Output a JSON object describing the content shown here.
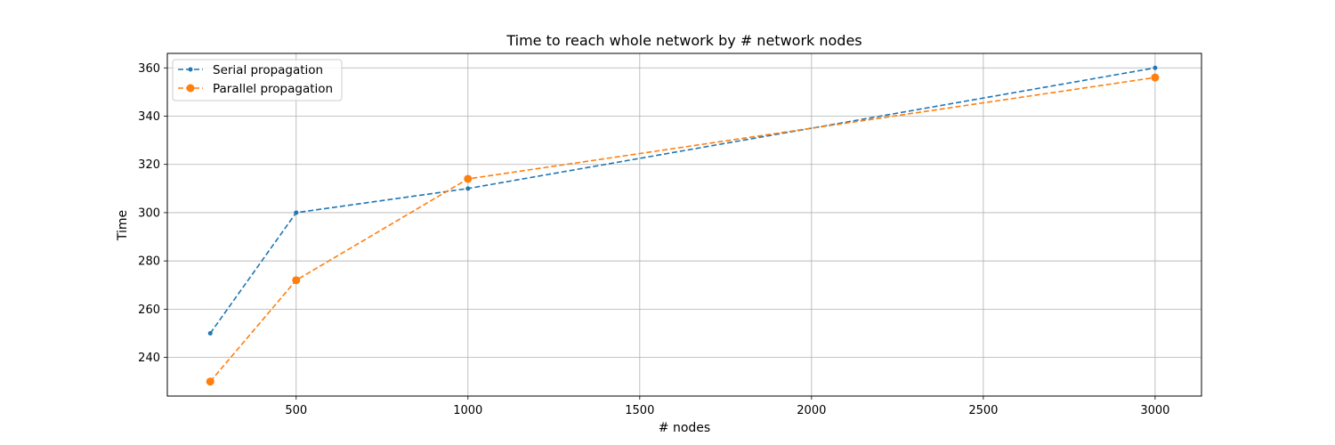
{
  "chart_data": {
    "type": "line",
    "title": "Time to reach whole network by # network nodes",
    "xlabel": "# nodes",
    "ylabel": "Time",
    "x": [
      250,
      500,
      1000,
      3000
    ],
    "xlim": [
      125,
      3135
    ],
    "ylim": [
      224,
      366
    ],
    "xticks": [
      500,
      1000,
      1500,
      2000,
      2500,
      3000
    ],
    "yticks": [
      240,
      260,
      280,
      300,
      320,
      340,
      360
    ],
    "grid": true,
    "legend_position": "upper-left",
    "series": [
      {
        "name": "Serial propagation",
        "values": [
          250,
          300,
          310,
          360
        ],
        "color": "#1f77b4",
        "marker": "small-dot",
        "linestyle": "dashed"
      },
      {
        "name": "Parallel propagation",
        "values": [
          230,
          272,
          314,
          356
        ],
        "color": "#ff7f0e",
        "marker": "large-dot",
        "linestyle": "dashed"
      }
    ]
  }
}
